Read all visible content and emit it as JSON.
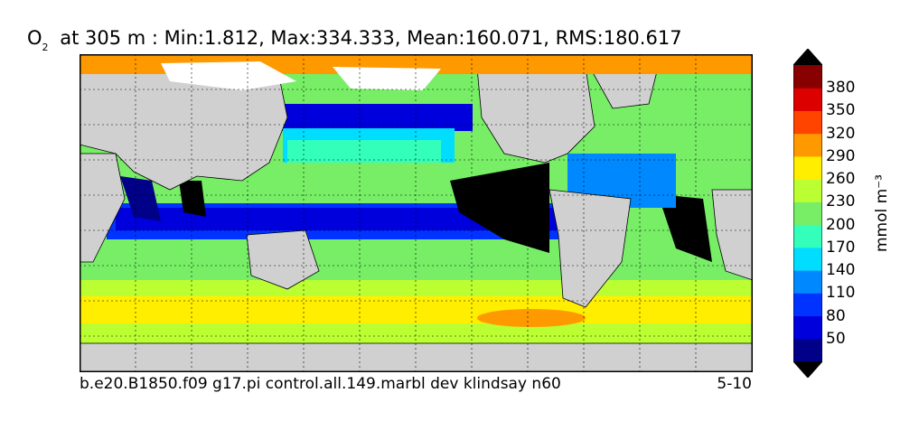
{
  "title": {
    "species": "O",
    "species_sub": "2",
    "rest": " at 305 m : Min:1.812, Max:334.333, Mean:160.071, RMS:180.617"
  },
  "colorbar": {
    "unit": "mmol m⁻³",
    "ticks": [
      "50",
      "80",
      "110",
      "140",
      "170",
      "200",
      "230",
      "260",
      "290",
      "320",
      "350",
      "380"
    ],
    "colors": [
      "#000088",
      "#0000dd",
      "#0033ff",
      "#0088ff",
      "#00ddff",
      "#33ffbb",
      "#77ee66",
      "#bbff33",
      "#ffee00",
      "#ff9900",
      "#ff4400",
      "#dd0000",
      "#880000"
    ],
    "under_color": "#000000",
    "over_color": "#000000"
  },
  "map": {
    "land_color": "#d0d0d0",
    "ice_color": "#ffffff",
    "frame_color": "#000000",
    "grid_style": "dotted"
  },
  "footer": {
    "caption": "b.e20.B1850.f09 g17.pi control.all.149.marbl dev klindsay n60",
    "period": "5-10"
  }
}
